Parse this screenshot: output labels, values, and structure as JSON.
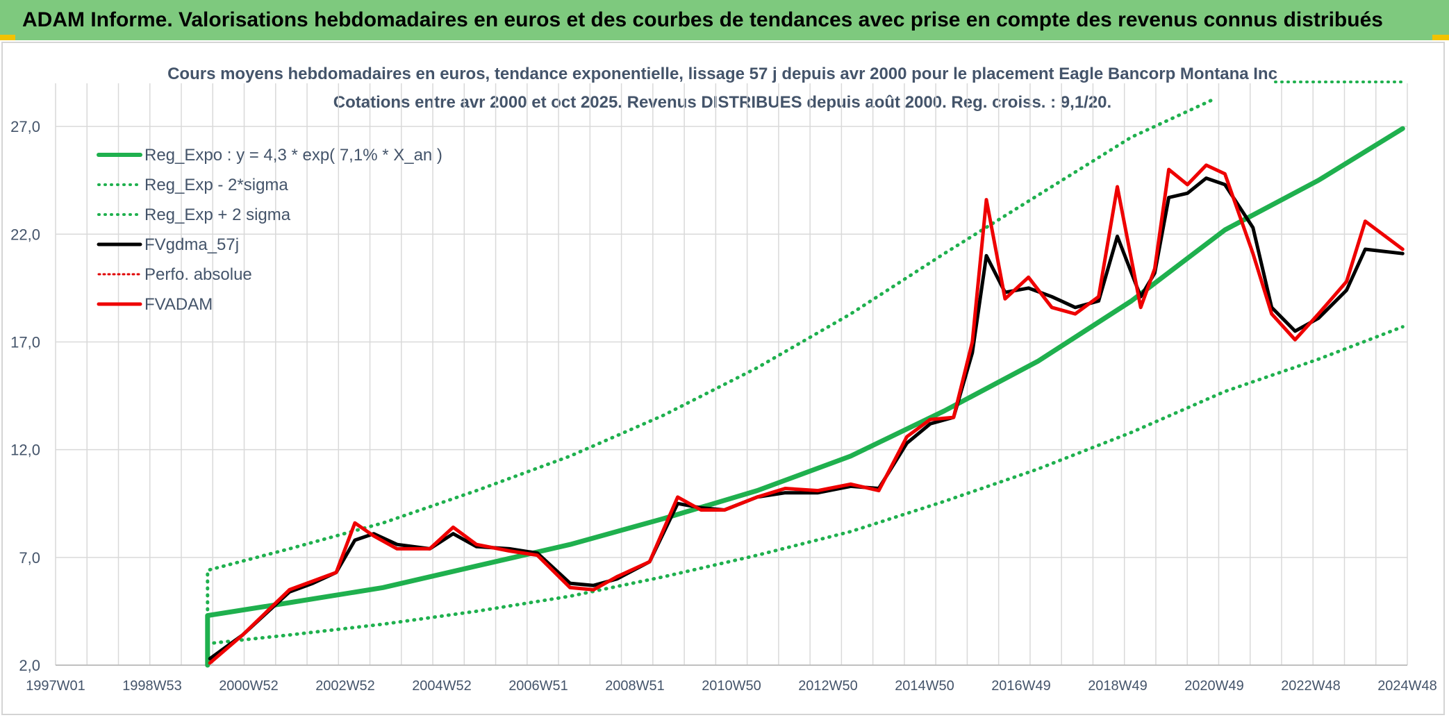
{
  "header": {
    "title": "ADAM Informe. Valorisations hebdomadaires en euros et des courbes de tendances avec prise en compte des revenus connus distribués"
  },
  "colors": {
    "banner": "#7ec97e",
    "banner_corner": "#f2c200",
    "reg_expo": "#1fb04e",
    "bands": "#1fb04e",
    "fvgdma": "#000000",
    "perfo": "#e00000",
    "fvadam": "#ee0000",
    "grid": "#d9d9d9",
    "text": "#44546a"
  },
  "chart_data": {
    "type": "line",
    "title": "Cours moyens hebdomadaires en euros, tendance exponentielle, lissage 57 j depuis avr 2000 pour le placement Eagle Bancorp Montana Inc",
    "subtitle": "Cotations entre avr 2000 et oct 2025. Revenus DISTRIBUES depuis août 2000. Reg. croiss. : 9,1/20.",
    "xlabel": "",
    "ylabel": "",
    "x_tick_labels": [
      "1997W01",
      "1998W53",
      "2000W52",
      "2002W52",
      "2004W52",
      "2006W51",
      "2008W51",
      "2010W50",
      "2012W50",
      "2014W50",
      "2016W49",
      "2018W49",
      "2020W49",
      "2022W48",
      "2024W48"
    ],
    "x_range_years": [
      1997.0,
      2025.9
    ],
    "y_tick_labels": [
      "2,0",
      "7,0",
      "12,0",
      "17,0",
      "22,0",
      "27,0"
    ],
    "ylim": [
      2.0,
      29.0
    ],
    "grid": true,
    "legend_position": "top-left",
    "legend": [
      "Reg_Expo : y = 4,3 * exp( 7,1% *  X_an )",
      "Reg_Exp - 2*sigma",
      "Reg_Exp + 2 sigma",
      "FVgdma_57j",
      "Perfo. absolue",
      "FVADAM"
    ],
    "series": [
      {
        "name": "Reg_Expo : y = 4,3 * exp( 7,1% *  X_an )",
        "style": "solid-thick",
        "x": [
          2000.25,
          2000.25,
          2002,
          2004,
          2006,
          2008,
          2010,
          2012,
          2014,
          2016,
          2018,
          2020,
          2022,
          2024,
          2025.8
        ],
        "y": [
          2.0,
          4.3,
          4.9,
          5.6,
          6.6,
          7.6,
          8.8,
          10.1,
          11.7,
          13.8,
          16.1,
          18.9,
          22.2,
          24.5,
          26.9
        ]
      },
      {
        "name": "Reg_Exp - 2*sigma",
        "style": "dotted",
        "x": [
          2000.25,
          2000.25,
          2002,
          2004,
          2006,
          2008,
          2010,
          2012,
          2014,
          2016,
          2018,
          2020,
          2022,
          2024,
          2025.8
        ],
        "y": [
          2.0,
          3.0,
          3.4,
          3.9,
          4.5,
          5.2,
          6.1,
          7.1,
          8.2,
          9.6,
          11.1,
          12.8,
          14.7,
          16.2,
          17.7
        ]
      },
      {
        "name": "Reg_Exp + 2 sigma",
        "style": "dotted",
        "x": [
          2000.25,
          2000.25,
          2002,
          2004,
          2006,
          2008,
          2010,
          2012,
          2014,
          2016,
          2018,
          2020,
          2021.8
        ],
        "y": [
          2.0,
          6.4,
          7.4,
          8.6,
          10.1,
          11.7,
          13.6,
          15.8,
          18.3,
          21.1,
          23.8,
          26.5,
          28.3
        ]
      },
      {
        "name": "FVgdma_57j",
        "style": "solid",
        "x": [
          2000.3,
          2001,
          2002,
          2002.5,
          2003,
          2003.4,
          2003.8,
          2004.3,
          2005,
          2005.5,
          2006,
          2006.7,
          2007.3,
          2008,
          2008.5,
          2009,
          2009.7,
          2010.3,
          2010.8,
          2011.3,
          2012,
          2012.6,
          2013.3,
          2014,
          2014.6,
          2015.2,
          2015.7,
          2016.2,
          2016.6,
          2016.9,
          2017.3,
          2017.8,
          2018.3,
          2018.8,
          2019.3,
          2019.7,
          2020.2,
          2020.5,
          2020.8,
          2021.2,
          2021.6,
          2022,
          2022.6,
          2023,
          2023.5,
          2024,
          2024.6,
          2025,
          2025.8
        ],
        "y": [
          2.3,
          3.4,
          5.4,
          5.8,
          6.3,
          7.8,
          8.1,
          7.6,
          7.4,
          8.1,
          7.5,
          7.4,
          7.2,
          5.8,
          5.7,
          6.0,
          6.8,
          9.5,
          9.3,
          9.2,
          9.8,
          10.0,
          10.0,
          10.3,
          10.2,
          12.3,
          13.2,
          13.5,
          16.5,
          21.0,
          19.3,
          19.5,
          19.1,
          18.6,
          18.9,
          21.9,
          19.1,
          20.2,
          23.7,
          23.9,
          24.6,
          24.3,
          22.3,
          18.6,
          17.5,
          18.1,
          19.4,
          21.3,
          21.1
        ]
      },
      {
        "name": "FVADAM",
        "style": "solid-thick",
        "x": [
          2000.3,
          2001,
          2002,
          2002.5,
          2003,
          2003.4,
          2003.8,
          2004.3,
          2005,
          2005.5,
          2006,
          2006.7,
          2007.3,
          2008,
          2008.5,
          2009,
          2009.7,
          2010.3,
          2010.8,
          2011.3,
          2012,
          2012.6,
          2013.3,
          2014,
          2014.6,
          2015.2,
          2015.7,
          2016.2,
          2016.6,
          2016.9,
          2017.3,
          2017.8,
          2018.3,
          2018.8,
          2019.3,
          2019.7,
          2020.2,
          2020.5,
          2020.8,
          2021.2,
          2021.6,
          2022,
          2022.6,
          2023,
          2023.5,
          2024,
          2024.6,
          2025,
          2025.8
        ],
        "y": [
          2.1,
          3.4,
          5.5,
          5.9,
          6.3,
          8.6,
          8.0,
          7.4,
          7.4,
          8.4,
          7.6,
          7.3,
          7.1,
          5.6,
          5.5,
          6.1,
          6.8,
          9.8,
          9.2,
          9.2,
          9.8,
          10.2,
          10.1,
          10.4,
          10.1,
          12.6,
          13.4,
          13.5,
          17.0,
          23.6,
          19.0,
          20.0,
          18.6,
          18.3,
          19.1,
          24.2,
          18.6,
          20.4,
          25.0,
          24.3,
          25.2,
          24.8,
          21.1,
          18.3,
          17.1,
          18.3,
          19.8,
          22.6,
          21.3
        ]
      }
    ]
  }
}
